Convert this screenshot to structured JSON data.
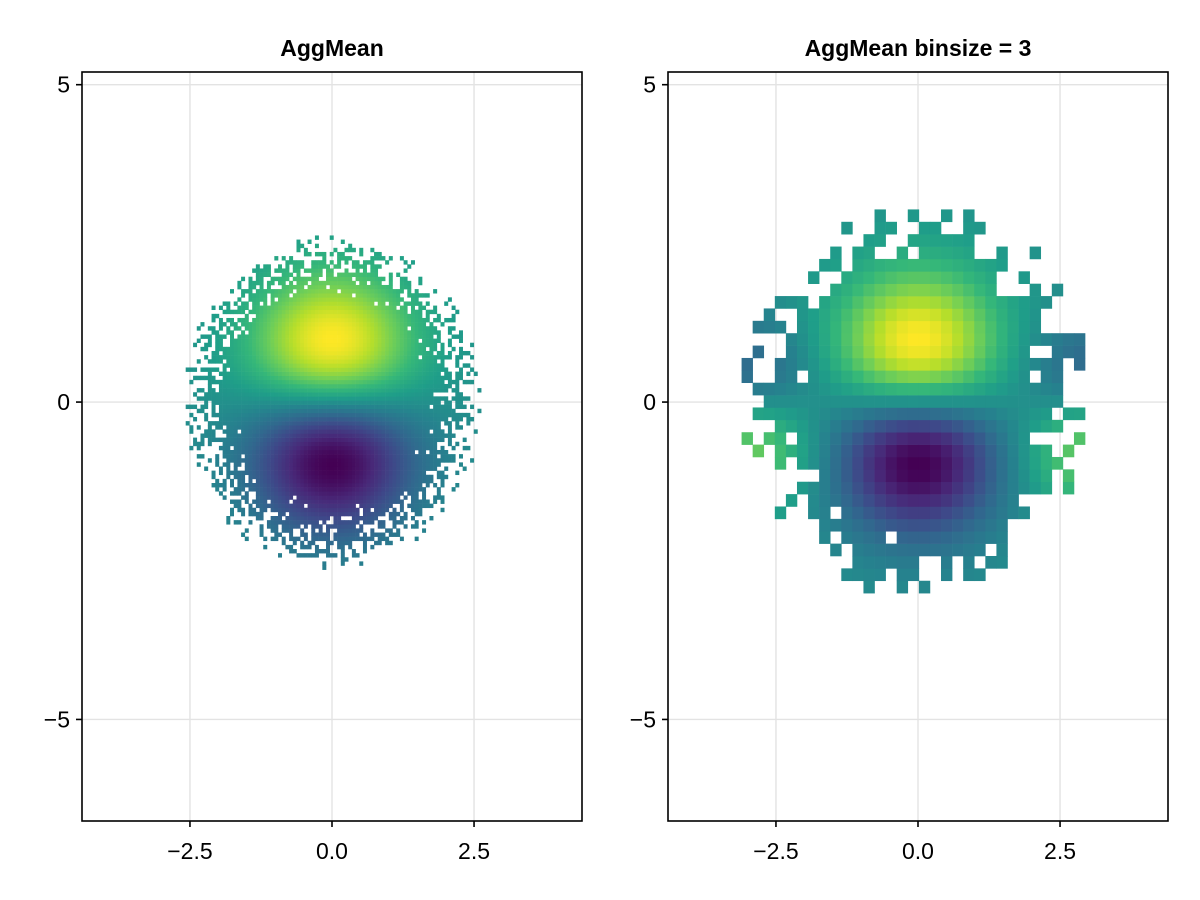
{
  "chart_data": [
    {
      "type": "heatmap",
      "title": "AggMean",
      "xlim": [
        -4.4,
        4.4
      ],
      "ylim": [
        -6.6,
        5.2
      ],
      "xticks": [
        -2.5,
        0.0,
        2.5
      ],
      "yticks": [
        -5,
        0,
        5
      ],
      "xtick_labels": [
        "−2.5",
        "0.0",
        "2.5"
      ],
      "ytick_labels": [
        "−5",
        "0",
        "5"
      ],
      "grid": true,
      "colormap": "viridis",
      "bin_size": 0.065,
      "data_extent": {
        "x": [
          -2.9,
          2.8
        ],
        "y": [
          -2.9,
          2.8
        ]
      },
      "description_of_values": "mean of a field ~ y*exp(-r^2/2) inside a 2D Gaussian point cloud: high (yellow) near (0, 1.5), low (purple) near (0, -1.5)"
    },
    {
      "type": "heatmap",
      "title": "AggMean binsize = 3",
      "xlim": [
        -4.4,
        4.4
      ],
      "ylim": [
        -6.6,
        5.2
      ],
      "xticks": [
        -2.5,
        0.0,
        2.5
      ],
      "yticks": [
        -5,
        0,
        5
      ],
      "xtick_labels": [
        "−2.5",
        "0.0",
        "2.5"
      ],
      "ytick_labels": [
        "−5",
        "0",
        "5"
      ],
      "grid": true,
      "colormap": "viridis",
      "bin_size": 0.195,
      "data_extent": {
        "x": [
          -3.3,
          3.5
        ],
        "y": [
          -3.4,
          3.4
        ]
      },
      "description_of_values": "same aggregated mean with 3x larger bins: yellow near (0, 1.5) and at far left/right (±2.7, -1), purple near (0, -1.5) and at upper corners (±2.3, 1.2)"
    }
  ],
  "colors": {
    "frame": "#000000",
    "grid": "#e3e3e3",
    "viridis": [
      "#440154",
      "#482878",
      "#3e4989",
      "#31688e",
      "#26828e",
      "#1f9e89",
      "#35b779",
      "#6ece58",
      "#b5de2b",
      "#fde725"
    ]
  }
}
